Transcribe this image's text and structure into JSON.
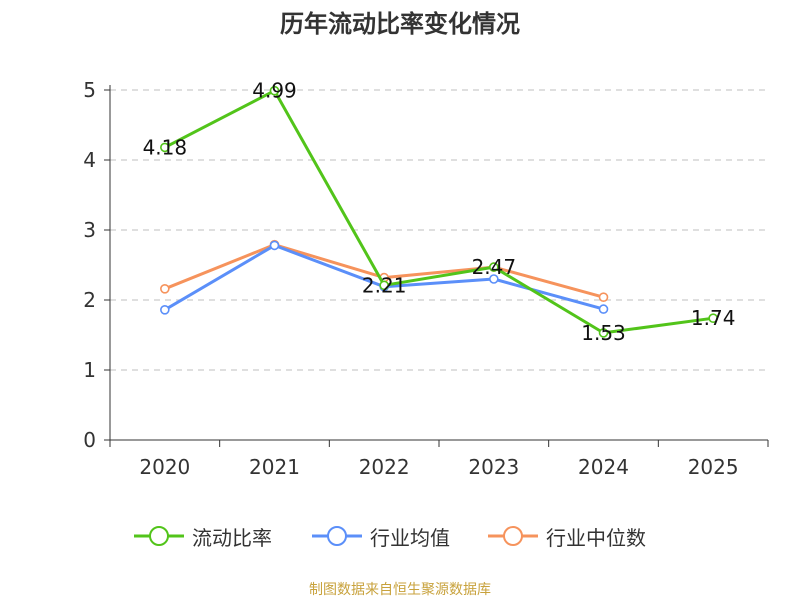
{
  "chart_data": {
    "type": "line",
    "title": "历年流动比率变化情况",
    "categories": [
      "2020",
      "2021",
      "2022",
      "2023",
      "2024",
      "2025"
    ],
    "ylim": [
      0,
      5
    ],
    "yticks": [
      0,
      1,
      2,
      3,
      4,
      5
    ],
    "grid": true,
    "legend_position": "bottom",
    "series": [
      {
        "name": "流动比率",
        "color": "#52c41a",
        "values": [
          4.18,
          4.99,
          2.21,
          2.47,
          1.53,
          1.74
        ],
        "labels": [
          "4.18",
          "4.99",
          "2.21",
          "2.47",
          "1.53",
          "1.74"
        ],
        "show_labels": true
      },
      {
        "name": "行业均值",
        "color": "#5b8ff9",
        "values": [
          1.86,
          2.78,
          2.19,
          2.3,
          1.87,
          null
        ],
        "show_labels": false
      },
      {
        "name": "行业中位数",
        "color": "#f6935c",
        "values": [
          2.16,
          2.79,
          2.32,
          2.47,
          2.04,
          null
        ],
        "show_labels": false
      }
    ]
  },
  "source": {
    "text": "制图数据来自恒生聚源数据库",
    "color": "#c8a23c"
  }
}
